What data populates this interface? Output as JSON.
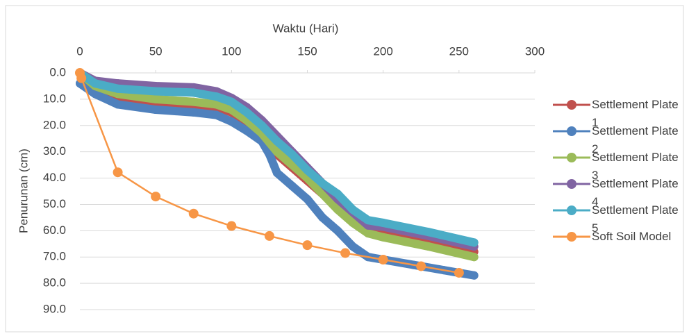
{
  "chart_data": {
    "type": "line",
    "xlabel": "Waktu (Hari)",
    "ylabel": "Penurunan (cm)",
    "xlim": [
      0,
      300
    ],
    "xticks": [
      0,
      50,
      100,
      150,
      200,
      250,
      300
    ],
    "ylim": [
      0,
      90
    ],
    "y_inverted": true,
    "x_axis_position": "top",
    "yticks": [
      {
        "value": 0,
        "label": "0.0"
      },
      {
        "value": 10,
        "label": "10.0"
      },
      {
        "value": 20,
        "label": "20.0"
      },
      {
        "value": 30,
        "label": "30.0"
      },
      {
        "value": 40,
        "label": "40.0"
      },
      {
        "value": 50,
        "label": "50.0"
      },
      {
        "value": 60,
        "label": "60.0"
      },
      {
        "value": 70,
        "label": "70.0"
      },
      {
        "value": 80,
        "label": "80.0"
      },
      {
        "value": 90,
        "label": "90.0"
      }
    ],
    "grid": true,
    "legend": "right",
    "series": [
      {
        "name": "Settlement Plate 1",
        "color": "#c0504d",
        "style": "dense",
        "x": [
          0,
          10,
          25,
          50,
          75,
          90,
          100,
          110,
          120,
          130,
          140,
          150,
          160,
          170,
          180,
          190,
          200,
          230,
          260
        ],
        "values": [
          0,
          6,
          9,
          11,
          12,
          13,
          15,
          19,
          24,
          31,
          36,
          41,
          46,
          51,
          56,
          59,
          60.5,
          64,
          68
        ]
      },
      {
        "name": "Settlement Plate 2",
        "color": "#4f81bd",
        "style": "dense",
        "x": [
          0,
          10,
          25,
          50,
          75,
          90,
          100,
          110,
          120,
          125,
          130,
          140,
          150,
          160,
          170,
          180,
          190,
          200,
          220,
          240,
          260
        ],
        "values": [
          4,
          8,
          12,
          14,
          15,
          16,
          18.5,
          22,
          26,
          31,
          38,
          43,
          48,
          55,
          60,
          66,
          70,
          71,
          73,
          75,
          77
        ]
      },
      {
        "name": "Settlement Plate 3",
        "color": "#9bbb59",
        "style": "dense",
        "x": [
          0,
          10,
          25,
          50,
          75,
          90,
          100,
          110,
          120,
          130,
          140,
          150,
          160,
          170,
          180,
          190,
          200,
          230,
          260
        ],
        "values": [
          0,
          5,
          8,
          10,
          11,
          12,
          14,
          18,
          23,
          30,
          35,
          40,
          46,
          52,
          57,
          61,
          62.5,
          66,
          70
        ]
      },
      {
        "name": "Settlement Plate 4",
        "color": "#8064a2",
        "style": "dense",
        "x": [
          0,
          10,
          25,
          50,
          75,
          90,
          100,
          110,
          120,
          130,
          140,
          150,
          160,
          170,
          180,
          190,
          200,
          230,
          260
        ],
        "values": [
          0,
          3,
          4,
          5,
          5.5,
          7,
          9.5,
          13,
          18,
          24,
          30,
          36,
          42,
          48,
          53,
          58,
          58.5,
          62,
          66
        ]
      },
      {
        "name": "Settlement Plate 5",
        "color": "#4bacc6",
        "style": "dense",
        "x": [
          0,
          10,
          25,
          50,
          75,
          90,
          100,
          110,
          120,
          130,
          140,
          150,
          160,
          170,
          180,
          190,
          200,
          230,
          260
        ],
        "values": [
          0,
          4,
          6,
          7,
          7.5,
          9,
          11,
          15,
          20,
          26,
          31,
          37,
          42,
          46,
          52,
          56,
          57,
          60.5,
          64.5
        ]
      },
      {
        "name": "Soft Soil Model",
        "color": "#f79646",
        "style": "markers",
        "x": [
          0,
          1,
          25,
          50,
          75,
          100,
          125,
          150,
          175,
          200,
          225,
          250
        ],
        "values": [
          0,
          2,
          37.8,
          47,
          53.5,
          58.2,
          62,
          65.5,
          68.5,
          71,
          73.5,
          76
        ]
      }
    ]
  }
}
